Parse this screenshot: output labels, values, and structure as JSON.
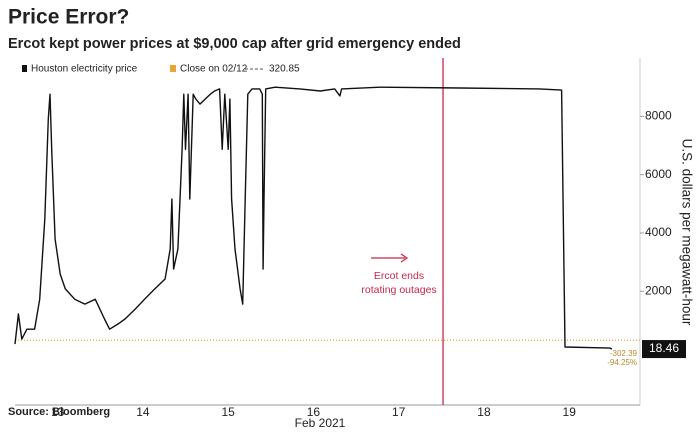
{
  "chart_data": {
    "type": "line",
    "title": "Price Error?",
    "subtitle": "Ercot kept power prices at $9,000 cap after grid emergency ended",
    "y_axis_label": "U.S. dollars per megawatt-hour",
    "x_axis_label": "Feb 2021",
    "source": "Source: Bloomberg",
    "xlim": [
      12.5,
      19.83
    ],
    "xticks": [
      13,
      14,
      15,
      16,
      17,
      18,
      19
    ],
    "ylim": [
      -1900,
      10000
    ],
    "yticks": [
      2000,
      4000,
      6000,
      8000
    ],
    "series": [
      {
        "name": "Houston electricity price",
        "color": "#111111",
        "x": [
          12.5,
          12.54,
          12.58,
          12.64,
          12.73,
          12.79,
          12.85,
          12.89,
          12.91,
          12.93,
          12.97,
          13.03,
          13.09,
          13.2,
          13.32,
          13.44,
          13.55,
          13.61,
          13.71,
          13.79,
          13.91,
          14.02,
          14.14,
          14.26,
          14.32,
          14.34,
          14.36,
          14.41,
          14.43,
          14.46,
          14.48,
          14.5,
          14.53,
          14.55,
          14.59,
          14.62,
          14.67,
          14.73,
          14.79,
          14.84,
          14.9,
          14.93,
          14.96,
          15.0,
          15.02,
          15.04,
          15.08,
          15.14,
          15.17,
          15.2,
          15.23,
          15.28,
          15.37,
          15.4,
          15.41,
          15.42,
          15.44,
          15.55,
          15.84,
          16.08,
          16.25,
          16.31,
          16.33,
          16.78,
          17.72,
          18.65,
          18.91,
          18.95,
          19.48,
          19.5
        ],
        "values": [
          190,
          1220,
          360,
          700,
          700,
          1730,
          4480,
          7910,
          8760,
          6870,
          3790,
          2590,
          2080,
          1730,
          1560,
          1730,
          1050,
          700,
          880,
          1050,
          1390,
          1730,
          2080,
          2420,
          3450,
          5160,
          2760,
          3450,
          4820,
          6870,
          8760,
          6870,
          8760,
          5160,
          8760,
          8590,
          8420,
          8590,
          8760,
          8870,
          8940,
          6870,
          8760,
          6870,
          8590,
          5160,
          3450,
          2080,
          1560,
          5160,
          8760,
          8940,
          8940,
          8760,
          2760,
          5160,
          8940,
          9000,
          8940,
          8870,
          8940,
          8700,
          8940,
          9000,
          8970,
          8940,
          8900,
          90,
          50,
          18.46
        ]
      }
    ],
    "reference_line": {
      "name": "Close on 02/12",
      "value": 320.85,
      "color": "#e8a33a"
    },
    "change_labels": [
      "-302.39",
      "-94.25%"
    ],
    "annotation": {
      "x": 17.52,
      "color": "#c8284a",
      "text": [
        "Ercot ends",
        "rotating outages"
      ]
    }
  }
}
